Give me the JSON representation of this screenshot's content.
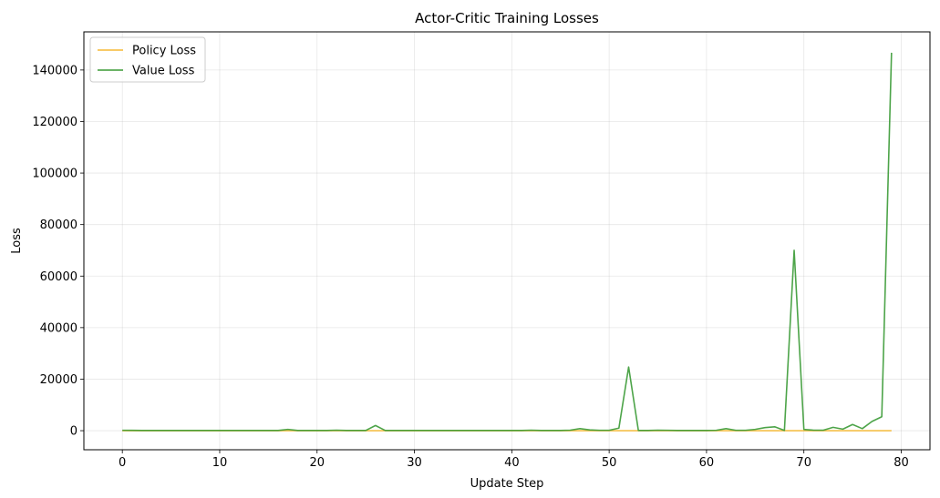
{
  "chart_data": {
    "type": "line",
    "title": "Actor-Critic Training Losses",
    "xlabel": "Update Step",
    "ylabel": "Loss",
    "xlim": [
      -3.95,
      82.95
    ],
    "ylim": [
      -7400,
      154800
    ],
    "xticks": [
      0,
      10,
      20,
      30,
      40,
      50,
      60,
      70,
      80
    ],
    "yticks": [
      0,
      20000,
      40000,
      60000,
      80000,
      100000,
      120000,
      140000
    ],
    "grid": true,
    "legend_position": "top-left",
    "x": [
      0,
      1,
      2,
      3,
      4,
      5,
      6,
      7,
      8,
      9,
      10,
      11,
      12,
      13,
      14,
      15,
      16,
      17,
      18,
      19,
      20,
      21,
      22,
      23,
      24,
      25,
      26,
      27,
      28,
      29,
      30,
      31,
      32,
      33,
      34,
      35,
      36,
      37,
      38,
      39,
      40,
      41,
      42,
      43,
      44,
      45,
      46,
      47,
      48,
      49,
      50,
      51,
      52,
      53,
      54,
      55,
      56,
      57,
      58,
      59,
      60,
      61,
      62,
      63,
      64,
      65,
      66,
      67,
      68,
      69,
      70,
      71,
      72,
      73,
      74,
      75,
      76,
      77,
      78,
      79
    ],
    "series": [
      {
        "name": "Policy Loss",
        "color": "#f5b935",
        "values": [
          5,
          5,
          5,
          5,
          5,
          5,
          5,
          5,
          5,
          5,
          5,
          5,
          5,
          5,
          5,
          5,
          5,
          5,
          5,
          5,
          5,
          5,
          5,
          5,
          5,
          5,
          5,
          5,
          5,
          5,
          5,
          5,
          5,
          5,
          5,
          5,
          5,
          5,
          5,
          5,
          5,
          5,
          5,
          5,
          5,
          5,
          5,
          5,
          5,
          5,
          5,
          5,
          5,
          5,
          5,
          5,
          5,
          5,
          5,
          5,
          5,
          5,
          5,
          5,
          5,
          5,
          5,
          5,
          5,
          5,
          5,
          5,
          5,
          5,
          5,
          5,
          5,
          5,
          5,
          5
        ]
      },
      {
        "name": "Value Loss",
        "color": "#3a9a35",
        "values": [
          150,
          120,
          100,
          100,
          100,
          100,
          100,
          100,
          100,
          100,
          100,
          100,
          100,
          100,
          100,
          100,
          100,
          500,
          100,
          100,
          100,
          100,
          200,
          100,
          100,
          100,
          2000,
          100,
          100,
          100,
          100,
          100,
          100,
          100,
          100,
          100,
          100,
          100,
          100,
          100,
          100,
          100,
          200,
          100,
          100,
          100,
          200,
          800,
          300,
          150,
          150,
          1000,
          24700,
          100,
          100,
          200,
          150,
          100,
          100,
          100,
          100,
          150,
          800,
          150,
          150,
          500,
          1200,
          1500,
          100,
          70000,
          500,
          200,
          200,
          1300,
          600,
          2400,
          800,
          3600,
          5400,
          146700
        ]
      }
    ]
  }
}
